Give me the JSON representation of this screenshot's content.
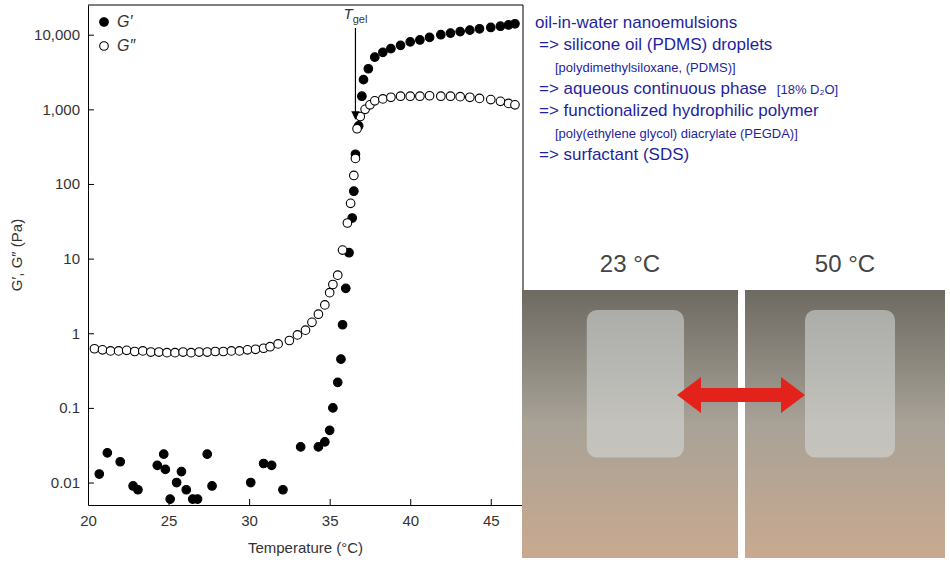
{
  "chart_data": {
    "type": "scatter",
    "x_label": "Temperature (°C)",
    "y_label": "G′, G″ (Pa)",
    "log": "y",
    "grid": false,
    "legend": "upper left",
    "xlim": [
      20,
      47
    ],
    "xticks": [
      20,
      25,
      30,
      35,
      40,
      45
    ],
    "ylim": [
      0.005,
      25000
    ],
    "yticks": [
      0.01,
      0.1,
      1,
      10,
      100,
      {
        "value": 1000,
        "label": "1,000"
      },
      {
        "value": 10000,
        "label": "10,000"
      }
    ],
    "series": [
      {
        "name": "G′",
        "color": "#000000",
        "marker": "filled",
        "x": [
          20.7,
          21.2,
          22,
          22.8,
          23.1,
          24.3,
          24.7,
          24.8,
          25.1,
          25.5,
          25.8,
          26.1,
          26.5,
          26.8,
          27.4,
          27.7,
          30.1,
          30.9,
          31.4,
          32.1,
          33.2,
          34.3,
          34.7,
          35,
          35.2,
          35.5,
          35.7,
          35.8,
          36,
          36.2,
          36.4,
          36.5,
          36.6,
          36.8,
          37,
          37.1,
          37.4,
          37.8,
          38.3,
          38.8,
          39.4,
          40,
          40.6,
          41.2,
          41.9,
          42.5,
          43.1,
          43.7,
          44.3,
          45,
          45.6,
          46.1,
          46.5
        ],
        "values": [
          0.013,
          0.025,
          0.019,
          0.009,
          0.008,
          0.017,
          0.024,
          0.015,
          0.006,
          0.01,
          0.014,
          0.008,
          0.006,
          0.006,
          0.024,
          0.009,
          0.01,
          0.018,
          0.017,
          0.008,
          0.03,
          0.03,
          0.035,
          0.05,
          0.1,
          0.22,
          0.45,
          1.3,
          4,
          12,
          35,
          80,
          250,
          600,
          1500,
          2500,
          3500,
          5000,
          5800,
          6500,
          7200,
          8000,
          8500,
          9200,
          10000,
          10500,
          11000,
          11500,
          12000,
          12500,
          13000,
          13500,
          14000
        ]
      },
      {
        "name": "G″",
        "color": "#000000",
        "marker": "open",
        "x": [
          20.4,
          20.9,
          21.4,
          21.9,
          22.4,
          22.9,
          23.4,
          23.9,
          24.4,
          24.9,
          25.4,
          25.9,
          26.4,
          26.9,
          27.4,
          27.9,
          28.4,
          28.9,
          29.4,
          29.9,
          30.4,
          30.9,
          31.3,
          31.8,
          32.5,
          33,
          33.5,
          33.9,
          34.3,
          34.7,
          35,
          35.2,
          35.5,
          35.8,
          36.1,
          36.3,
          36.5,
          36.6,
          36.7,
          36.9,
          37.2,
          37.5,
          37.8,
          38.3,
          38.8,
          39.4,
          40,
          40.6,
          41.2,
          41.9,
          42.5,
          43.1,
          43.7,
          44.3,
          45,
          45.6,
          46.1,
          46.5
        ],
        "values": [
          0.62,
          0.6,
          0.58,
          0.58,
          0.59,
          0.57,
          0.58,
          0.56,
          0.56,
          0.55,
          0.55,
          0.56,
          0.55,
          0.56,
          0.56,
          0.57,
          0.57,
          0.58,
          0.58,
          0.6,
          0.61,
          0.63,
          0.66,
          0.72,
          0.8,
          0.95,
          1.1,
          1.4,
          1.8,
          2.4,
          3.5,
          4.5,
          6,
          13,
          30,
          55,
          130,
          220,
          550,
          800,
          1000,
          1150,
          1300,
          1380,
          1450,
          1500,
          1500,
          1500,
          1520,
          1500,
          1500,
          1480,
          1450,
          1400,
          1350,
          1280,
          1200,
          1150
        ]
      }
    ],
    "annotations": [
      {
        "text": "T",
        "subscript": "gel",
        "x": 36.6,
        "y": 600
      }
    ]
  },
  "notes": [
    [
      "oil-in-water nanoemulsions"
    ],
    [
      "=> silicone oil (PDMS) droplets"
    ],
    [
      "[polydimethylsiloxane, (PDMS)]"
    ],
    [
      "=> aqueous continuous phase",
      "[18% D₂O]"
    ],
    [
      "=> functionalized hydrophilic polymer"
    ],
    [
      "[poly(ethylene glycol) diacrylate (PEGDA)]"
    ],
    [
      "=> surfactant (SDS)"
    ]
  ],
  "photos": [
    {
      "label": "23 °C"
    },
    {
      "label": "50 °C"
    }
  ]
}
